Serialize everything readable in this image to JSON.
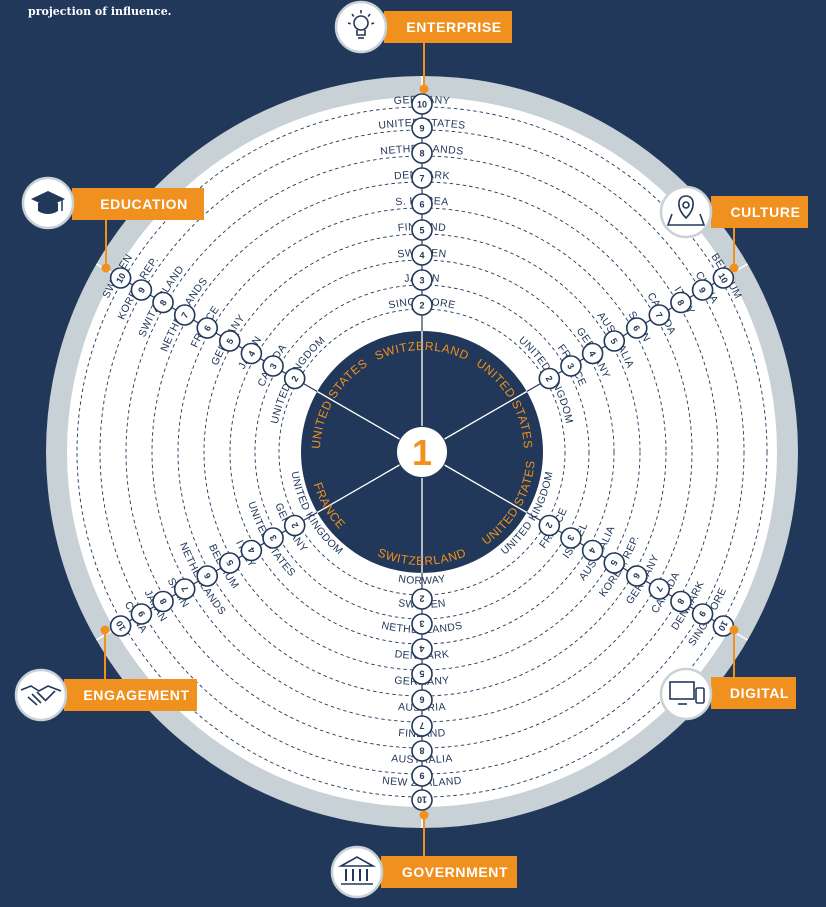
{
  "intro_text": "projection of influence.",
  "colors": {
    "background": "#22385a",
    "outer_ring": "#c8d1d6",
    "ring_fill": "#ffffff",
    "center_fill": "#22385a",
    "accent": "#f0901e",
    "text": "#22385a",
    "grid_line": "#22385a"
  },
  "center_rank": "1",
  "categories": [
    {
      "key": "enterprise",
      "label": "ENTERPRISE",
      "icon": "lightbulb-icon",
      "top": "SWITZERLAND",
      "countries": [
        "SINGAPORE",
        "JAPAN",
        "SWEDEN",
        "FINLAND",
        "S. KOREA",
        "DENMARK",
        "NETHERLANDS",
        "UNITED STATES",
        "GERMANY"
      ]
    },
    {
      "key": "culture",
      "label": "CULTURE",
      "icon": "map-pin-icon",
      "top": "UNITED STATES",
      "countries": [
        "UNITED KINGDOM",
        "FRANCE",
        "GERMANY",
        "AUSTRALIA",
        "SPAIN",
        "CANADA",
        "ITALY",
        "CHINA",
        "BELGIUM"
      ]
    },
    {
      "key": "digital",
      "label": "DIGITAL",
      "icon": "computer-devices-icon",
      "top": "UNITED STATES",
      "countries": [
        "UNITED KINGDOM",
        "FRANCE",
        "ISRAEL",
        "AUSTRALIA",
        "KOREA, REP.",
        "GERMANY",
        "CANADA",
        "DENMARK",
        "SINGAPORE"
      ]
    },
    {
      "key": "government",
      "label": "GOVERNMENT",
      "icon": "government-building-icon",
      "top": "SWITZERLAND",
      "countries": [
        "NORWAY",
        "SWEDEN",
        "NETHERLANDS",
        "DENMARK",
        "GERMANY",
        "AUSTRIA",
        "FINLAND",
        "AUSTRALIA",
        "NEW ZEALAND"
      ]
    },
    {
      "key": "engagement",
      "label": "ENGAGEMENT",
      "icon": "handshake-icon",
      "top": "FRANCE",
      "countries": [
        "UNITED KINGDOM",
        "GERMANY",
        "UNITED STATES",
        "ITALY",
        "BELGIUM",
        "NETHERLANDS",
        "SPAIN",
        "JAPAN",
        "CHINA"
      ]
    },
    {
      "key": "education",
      "label": "EDUCATION",
      "icon": "graduation-cap-icon",
      "top": "UNITED STATES",
      "countries": [
        "UNITED KINGDOM",
        "CANADA",
        "JAPAN",
        "GERMANY",
        "FRANCE",
        "NETHERLANDS",
        "SWITZERLAND",
        "KOREA, REP.",
        "SWEDEN"
      ]
    }
  ],
  "rank_labels": [
    "2",
    "3",
    "4",
    "5",
    "6",
    "7",
    "8",
    "9",
    "10"
  ]
}
